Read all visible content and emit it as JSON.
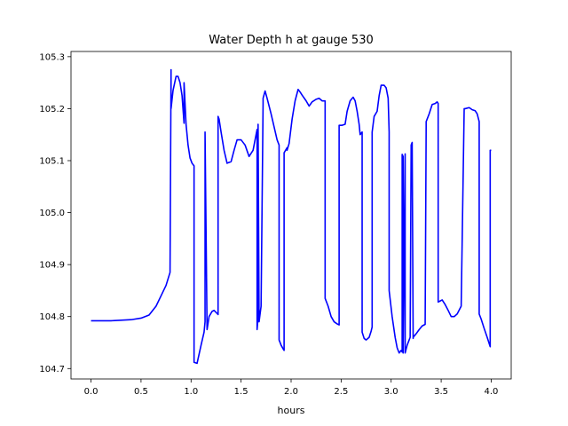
{
  "chart_data": {
    "type": "line",
    "title": "Water Depth h at gauge 530",
    "xlabel": "hours",
    "ylabel": "",
    "xlim": [
      -0.2,
      4.2
    ],
    "ylim": [
      104.68,
      105.31
    ],
    "grid": false,
    "legend": "none",
    "x_ticks": [
      0.0,
      0.5,
      1.0,
      1.5,
      2.0,
      2.5,
      3.0,
      3.5,
      4.0
    ],
    "x_tick_labels": [
      "0.0",
      "0.5",
      "1.0",
      "1.5",
      "2.0",
      "2.5",
      "3.0",
      "3.5",
      "4.0"
    ],
    "y_ticks": [
      104.7,
      104.8,
      104.9,
      105.0,
      105.1,
      105.2,
      105.3
    ],
    "y_tick_labels": [
      "104.7",
      "104.8",
      "104.9",
      "105.0",
      "105.1",
      "105.2",
      "105.3"
    ],
    "series": [
      {
        "name": "",
        "color": "#0000ff",
        "x": [
          0.0,
          0.2,
          0.4,
          0.5,
          0.58,
          0.65,
          0.7,
          0.75,
          0.79,
          0.8,
          0.8,
          0.82,
          0.85,
          0.87,
          0.89,
          0.91,
          0.93,
          0.93,
          0.95,
          0.97,
          0.99,
          1.01,
          1.03,
          1.03,
          1.06,
          1.1,
          1.13,
          1.14,
          1.14,
          1.16,
          1.18,
          1.21,
          1.23,
          1.27,
          1.27,
          1.28,
          1.3,
          1.33,
          1.36,
          1.4,
          1.43,
          1.46,
          1.5,
          1.54,
          1.58,
          1.62,
          1.65,
          1.66,
          1.66,
          1.67,
          1.67,
          1.68,
          1.7,
          1.72,
          1.72,
          1.74,
          1.76,
          1.8,
          1.83,
          1.86,
          1.88,
          1.88,
          1.9,
          1.92,
          1.93,
          1.93,
          1.96,
          1.96,
          1.98,
          2.01,
          2.04,
          2.07,
          2.09,
          2.11,
          2.15,
          2.18,
          2.21,
          2.25,
          2.28,
          2.31,
          2.34,
          2.34,
          2.37,
          2.4,
          2.43,
          2.46,
          2.47,
          2.48,
          2.48,
          2.51,
          2.51,
          2.54,
          2.56,
          2.59,
          2.62,
          2.64,
          2.66,
          2.68,
          2.69,
          2.71,
          2.71,
          2.73,
          2.75,
          2.78,
          2.8,
          2.81,
          2.81,
          2.83,
          2.86,
          2.88,
          2.9,
          2.93,
          2.95,
          2.97,
          2.98,
          2.98,
          3.01,
          3.04,
          3.06,
          3.08,
          3.1,
          3.11,
          3.11,
          3.12,
          3.12,
          3.14,
          3.14,
          3.16,
          3.19,
          3.2,
          3.21,
          3.22,
          3.22,
          3.25,
          3.28,
          3.31,
          3.34,
          3.35,
          3.35,
          3.38,
          3.41,
          3.44,
          3.46,
          3.47,
          3.47,
          3.49,
          3.51,
          3.54,
          3.57,
          3.6,
          3.63,
          3.66,
          3.7,
          3.73,
          3.74,
          3.74,
          3.78,
          3.81,
          3.84,
          3.86,
          3.88,
          3.88,
          3.9,
          3.93,
          3.96,
          3.99,
          3.99,
          4.0
        ],
        "y": [
          104.792,
          104.792,
          104.794,
          104.797,
          104.803,
          104.82,
          104.84,
          104.86,
          104.885,
          105.275,
          105.2,
          105.235,
          105.262,
          105.262,
          105.25,
          105.225,
          105.172,
          105.25,
          105.17,
          105.13,
          105.105,
          105.095,
          105.09,
          104.712,
          104.71,
          104.745,
          104.77,
          104.79,
          105.155,
          104.775,
          104.8,
          104.81,
          104.812,
          104.804,
          105.185,
          105.18,
          105.155,
          105.12,
          105.095,
          105.098,
          105.12,
          105.14,
          105.14,
          105.13,
          105.108,
          105.12,
          105.15,
          105.16,
          104.775,
          104.8,
          105.17,
          104.79,
          104.82,
          105.21,
          105.22,
          105.234,
          105.22,
          105.19,
          105.165,
          105.14,
          105.13,
          104.755,
          104.745,
          104.738,
          104.735,
          105.115,
          105.125,
          105.12,
          105.133,
          105.18,
          105.215,
          105.237,
          105.232,
          105.226,
          105.215,
          105.205,
          105.213,
          105.218,
          105.22,
          105.215,
          105.215,
          104.835,
          104.82,
          104.8,
          104.79,
          104.786,
          104.785,
          104.784,
          105.168,
          105.168,
          105.168,
          105.17,
          105.195,
          105.215,
          105.222,
          105.215,
          105.195,
          105.17,
          105.15,
          105.155,
          104.77,
          104.758,
          104.755,
          104.76,
          104.772,
          104.78,
          105.155,
          105.185,
          105.195,
          105.225,
          105.245,
          105.245,
          105.24,
          105.22,
          105.155,
          104.85,
          104.8,
          104.76,
          104.74,
          104.73,
          104.735,
          104.732,
          105.112,
          105.108,
          104.73,
          105.113,
          104.73,
          104.745,
          104.76,
          105.13,
          105.135,
          104.758,
          104.76,
          104.767,
          104.775,
          104.782,
          104.785,
          105.165,
          105.175,
          105.19,
          105.208,
          105.21,
          105.213,
          105.21,
          104.828,
          104.83,
          104.832,
          104.823,
          104.812,
          104.8,
          104.8,
          104.805,
          104.82,
          105.2,
          105.2,
          105.2,
          105.202,
          105.198,
          105.196,
          105.19,
          105.175,
          104.805,
          104.795,
          104.777,
          104.76,
          104.742,
          105.12,
          105.12
        ]
      }
    ]
  }
}
